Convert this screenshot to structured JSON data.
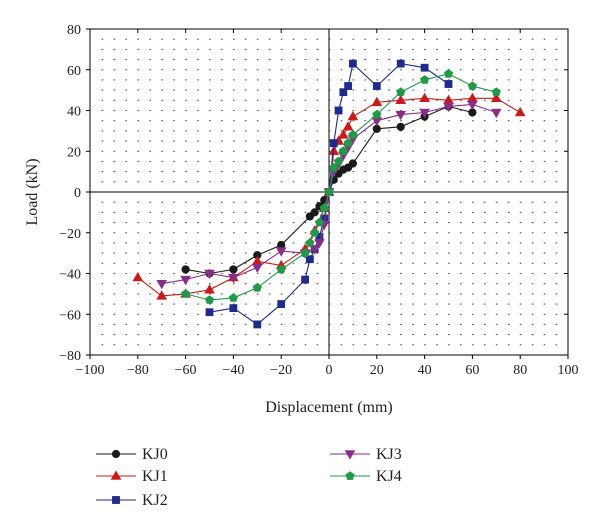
{
  "chart_data": {
    "type": "line",
    "xlabel": "Displacement (mm)",
    "ylabel": "Load (kN)",
    "xlim": [
      -100,
      100
    ],
    "ylim": [
      -80,
      80
    ],
    "xticks": [
      -100,
      -80,
      -60,
      -40,
      -20,
      0,
      20,
      40,
      60,
      80,
      100
    ],
    "yticks": [
      -80,
      -60,
      -40,
      -20,
      0,
      20,
      40,
      60,
      80
    ],
    "xtick_labels": [
      "−100",
      "−80",
      "−60",
      "−40",
      "−20",
      "0",
      "20",
      "40",
      "60",
      "80",
      "100"
    ],
    "ytick_labels": [
      "−80",
      "−60",
      "−40",
      "−20",
      "0",
      "20",
      "40",
      "60",
      "80"
    ],
    "grid": "dotted",
    "legend_position": "bottom",
    "series": [
      {
        "name": "KJ0",
        "color": "#1a1a1a",
        "marker": "circle",
        "x": [
          -60,
          -50,
          -40,
          -30,
          -20,
          -8,
          -6,
          -4,
          -2,
          0,
          2,
          4,
          6,
          8,
          10,
          20,
          30,
          40,
          50,
          60
        ],
        "y": [
          -38,
          -40,
          -38,
          -31,
          -26,
          -12,
          -10,
          -7,
          -4,
          0,
          6,
          9,
          11,
          12,
          14,
          31,
          32,
          37,
          42,
          39
        ]
      },
      {
        "name": "KJ1",
        "color": "#cc1a1a",
        "marker": "triangle-up",
        "x": [
          -80,
          -70,
          -60,
          -50,
          -40,
          -30,
          -20,
          -10,
          -6,
          -2,
          0,
          2,
          4,
          6,
          8,
          10,
          20,
          30,
          40,
          50,
          60,
          70,
          80
        ],
        "y": [
          -42,
          -51,
          -50,
          -48,
          -42,
          -34,
          -36,
          -28,
          -19,
          -8,
          0,
          20,
          25,
          28,
          32,
          37,
          44,
          45,
          46,
          45,
          46,
          46,
          39
        ]
      },
      {
        "name": "KJ2",
        "color": "#1f2a8c",
        "marker": "square",
        "x": [
          -50,
          -40,
          -30,
          -20,
          -10,
          -8,
          -6,
          -4,
          -2,
          0,
          2,
          4,
          6,
          8,
          10,
          20,
          30,
          40,
          50
        ],
        "y": [
          -59,
          -57,
          -65,
          -55,
          -43,
          -33,
          -28,
          -22,
          -13,
          0,
          24,
          40,
          49,
          52,
          63,
          52,
          63,
          61,
          53
        ]
      },
      {
        "name": "KJ3",
        "color": "#8a2d8a",
        "marker": "triangle-down",
        "x": [
          -70,
          -60,
          -50,
          -40,
          -30,
          -20,
          -10,
          -6,
          -4,
          -2,
          0,
          2,
          4,
          6,
          8,
          10,
          20,
          30,
          40,
          50,
          60,
          70
        ],
        "y": [
          -45,
          -43,
          -40,
          -42,
          -37,
          -29,
          -30,
          -28,
          -25,
          -16,
          0,
          10,
          14,
          18,
          22,
          26,
          35,
          38,
          39,
          42,
          43,
          39
        ]
      },
      {
        "name": "KJ4",
        "color": "#1f9a46",
        "marker": "pentagon",
        "x": [
          -60,
          -50,
          -40,
          -30,
          -20,
          -10,
          -8,
          -6,
          -4,
          -2,
          0,
          2,
          4,
          6,
          8,
          10,
          20,
          30,
          40,
          50,
          60,
          70
        ],
        "y": [
          -50,
          -53,
          -52,
          -47,
          -38,
          -30,
          -25,
          -20,
          -15,
          -8,
          0,
          12,
          15,
          20,
          24,
          28,
          38,
          49,
          55,
          58,
          52,
          49
        ]
      }
    ]
  }
}
